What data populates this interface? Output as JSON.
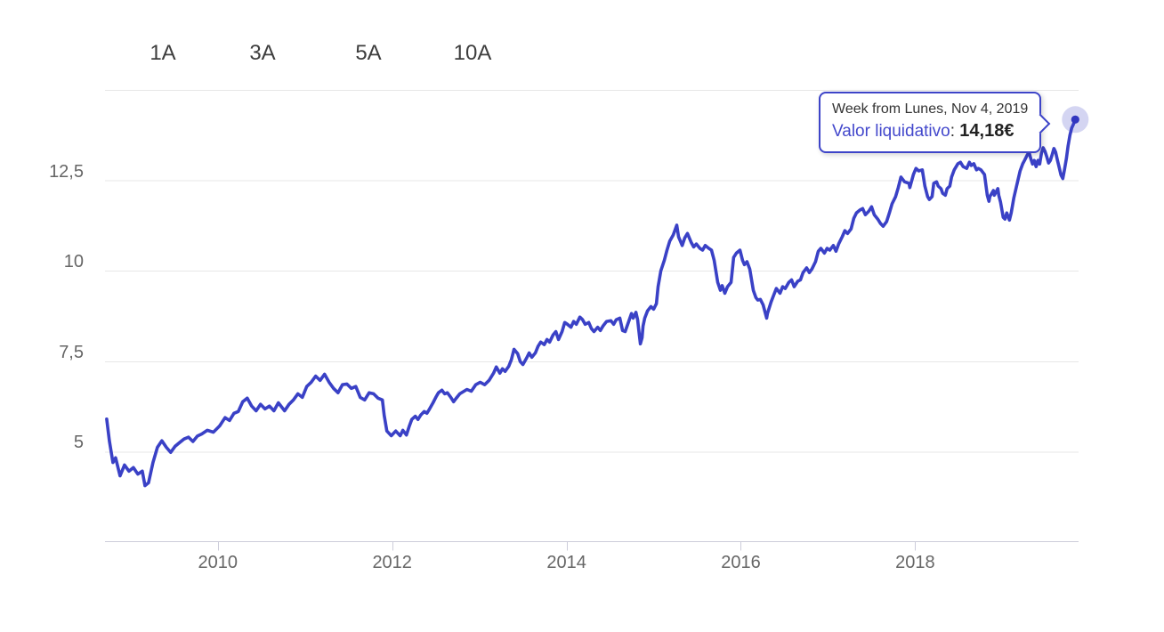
{
  "range_selector": {
    "buttons": [
      {
        "label": "1A"
      },
      {
        "label": "3A"
      },
      {
        "label": "5A"
      },
      {
        "label": "10A"
      }
    ]
  },
  "tooltip": {
    "header": "Week from Lunes, Nov 4, 2019",
    "series_label": "Valor liquidativo",
    "separator": ": ",
    "value": "14,18€"
  },
  "colors": {
    "line": "#3a41c6",
    "dot": "#3136bf",
    "halo": "rgba(58,65,198,0.22)",
    "grid": "#e7e7e7",
    "axis_line": "#ccccda",
    "tick": "#ccccda",
    "axis_label": "#666666",
    "button_text": "#3d3d3d",
    "tooltip_border": "#3d44c8",
    "tooltip_header": "#333333",
    "tooltip_label": "#4348cc",
    "tooltip_value": "#222222"
  },
  "chart_data": {
    "type": "line",
    "title": "",
    "xlabel": "",
    "ylabel": "",
    "series_name": "Valor liquidativo",
    "unit": "€",
    "grid": true,
    "x_axis": {
      "range": [
        2008.705,
        2019.875
      ],
      "ticks": [
        2010,
        2012,
        2014,
        2016,
        2018
      ],
      "tick_labels": [
        "2010",
        "2012",
        "2014",
        "2016",
        "2018"
      ]
    },
    "y_axis": {
      "range": [
        2.5,
        15
      ],
      "ticks": [
        5,
        7.5,
        10,
        12.5
      ],
      "tick_labels": [
        "5",
        "7,5",
        "10",
        "12,5"
      ],
      "gridlines": [
        5,
        7.5,
        10,
        12.5,
        15
      ]
    },
    "highlight_point": {
      "x": 2019.837,
      "y": 14.18,
      "date": "Nov 4, 2019",
      "value_label": "14,18€"
    },
    "points": [
      [
        2008.724,
        5.9
      ],
      [
        2008.755,
        5.3
      ],
      [
        2008.796,
        4.7
      ],
      [
        2008.827,
        4.83
      ],
      [
        2008.878,
        4.33
      ],
      [
        2008.929,
        4.63
      ],
      [
        2008.98,
        4.46
      ],
      [
        2009.031,
        4.56
      ],
      [
        2009.082,
        4.38
      ],
      [
        2009.133,
        4.46
      ],
      [
        2009.163,
        4.06
      ],
      [
        2009.204,
        4.14
      ],
      [
        2009.255,
        4.7
      ],
      [
        2009.306,
        5.12
      ],
      [
        2009.357,
        5.3
      ],
      [
        2009.408,
        5.12
      ],
      [
        2009.459,
        4.98
      ],
      [
        2009.51,
        5.15
      ],
      [
        2009.561,
        5.25
      ],
      [
        2009.612,
        5.35
      ],
      [
        2009.663,
        5.4
      ],
      [
        2009.714,
        5.28
      ],
      [
        2009.765,
        5.43
      ],
      [
        2009.816,
        5.49
      ],
      [
        2009.878,
        5.59
      ],
      [
        2009.949,
        5.54
      ],
      [
        2010.02,
        5.71
      ],
      [
        2010.082,
        5.94
      ],
      [
        2010.133,
        5.86
      ],
      [
        2010.184,
        6.06
      ],
      [
        2010.235,
        6.11
      ],
      [
        2010.286,
        6.38
      ],
      [
        2010.337,
        6.48
      ],
      [
        2010.388,
        6.26
      ],
      [
        2010.439,
        6.13
      ],
      [
        2010.49,
        6.31
      ],
      [
        2010.541,
        6.18
      ],
      [
        2010.592,
        6.26
      ],
      [
        2010.643,
        6.13
      ],
      [
        2010.694,
        6.35
      ],
      [
        2010.765,
        6.13
      ],
      [
        2010.816,
        6.31
      ],
      [
        2010.867,
        6.43
      ],
      [
        2010.918,
        6.6
      ],
      [
        2010.969,
        6.5
      ],
      [
        2011.02,
        6.8
      ],
      [
        2011.071,
        6.92
      ],
      [
        2011.122,
        7.09
      ],
      [
        2011.173,
        6.97
      ],
      [
        2011.224,
        7.14
      ],
      [
        2011.276,
        6.92
      ],
      [
        2011.327,
        6.75
      ],
      [
        2011.378,
        6.63
      ],
      [
        2011.429,
        6.85
      ],
      [
        2011.48,
        6.87
      ],
      [
        2011.531,
        6.75
      ],
      [
        2011.582,
        6.8
      ],
      [
        2011.633,
        6.5
      ],
      [
        2011.684,
        6.43
      ],
      [
        2011.735,
        6.63
      ],
      [
        2011.786,
        6.6
      ],
      [
        2011.837,
        6.48
      ],
      [
        2011.888,
        6.43
      ],
      [
        2011.908,
        6.01
      ],
      [
        2011.939,
        5.57
      ],
      [
        2011.99,
        5.44
      ],
      [
        2012.041,
        5.57
      ],
      [
        2012.092,
        5.44
      ],
      [
        2012.122,
        5.59
      ],
      [
        2012.163,
        5.46
      ],
      [
        2012.194,
        5.69
      ],
      [
        2012.224,
        5.89
      ],
      [
        2012.265,
        5.98
      ],
      [
        2012.296,
        5.89
      ],
      [
        2012.327,
        6.01
      ],
      [
        2012.367,
        6.11
      ],
      [
        2012.398,
        6.06
      ],
      [
        2012.429,
        6.18
      ],
      [
        2012.469,
        6.35
      ],
      [
        2012.5,
        6.5
      ],
      [
        2012.531,
        6.63
      ],
      [
        2012.571,
        6.7
      ],
      [
        2012.602,
        6.6
      ],
      [
        2012.633,
        6.63
      ],
      [
        2012.673,
        6.5
      ],
      [
        2012.704,
        6.38
      ],
      [
        2012.735,
        6.48
      ],
      [
        2012.776,
        6.6
      ],
      [
        2012.857,
        6.72
      ],
      [
        2012.908,
        6.67
      ],
      [
        2012.959,
        6.85
      ],
      [
        2013.01,
        6.92
      ],
      [
        2013.061,
        6.85
      ],
      [
        2013.112,
        6.97
      ],
      [
        2013.163,
        7.17
      ],
      [
        2013.194,
        7.34
      ],
      [
        2013.235,
        7.17
      ],
      [
        2013.265,
        7.29
      ],
      [
        2013.296,
        7.22
      ],
      [
        2013.337,
        7.36
      ],
      [
        2013.367,
        7.54
      ],
      [
        2013.398,
        7.83
      ],
      [
        2013.439,
        7.71
      ],
      [
        2013.469,
        7.49
      ],
      [
        2013.5,
        7.41
      ],
      [
        2013.541,
        7.58
      ],
      [
        2013.571,
        7.73
      ],
      [
        2013.602,
        7.61
      ],
      [
        2013.643,
        7.73
      ],
      [
        2013.673,
        7.91
      ],
      [
        2013.704,
        8.03
      ],
      [
        2013.745,
        7.96
      ],
      [
        2013.776,
        8.1
      ],
      [
        2013.806,
        8.03
      ],
      [
        2013.847,
        8.23
      ],
      [
        2013.878,
        8.32
      ],
      [
        2013.908,
        8.1
      ],
      [
        2013.949,
        8.32
      ],
      [
        2013.98,
        8.57
      ],
      [
        2014.01,
        8.52
      ],
      [
        2014.051,
        8.44
      ],
      [
        2014.082,
        8.6
      ],
      [
        2014.112,
        8.52
      ],
      [
        2014.153,
        8.72
      ],
      [
        2014.184,
        8.65
      ],
      [
        2014.214,
        8.52
      ],
      [
        2014.255,
        8.57
      ],
      [
        2014.286,
        8.4
      ],
      [
        2014.316,
        8.32
      ],
      [
        2014.357,
        8.44
      ],
      [
        2014.388,
        8.35
      ],
      [
        2014.418,
        8.47
      ],
      [
        2014.459,
        8.6
      ],
      [
        2014.51,
        8.62
      ],
      [
        2014.541,
        8.52
      ],
      [
        2014.571,
        8.65
      ],
      [
        2014.612,
        8.69
      ],
      [
        2014.643,
        8.35
      ],
      [
        2014.673,
        8.32
      ],
      [
        2014.714,
        8.6
      ],
      [
        2014.745,
        8.82
      ],
      [
        2014.765,
        8.69
      ],
      [
        2014.796,
        8.85
      ],
      [
        2014.816,
        8.65
      ],
      [
        2014.827,
        8.4
      ],
      [
        2014.847,
        7.98
      ],
      [
        2014.867,
        8.15
      ],
      [
        2014.878,
        8.47
      ],
      [
        2014.898,
        8.69
      ],
      [
        2014.929,
        8.89
      ],
      [
        2014.969,
        9.01
      ],
      [
        2015.0,
        8.94
      ],
      [
        2015.031,
        9.09
      ],
      [
        2015.051,
        9.56
      ],
      [
        2015.082,
        10.0
      ],
      [
        2015.122,
        10.29
      ],
      [
        2015.153,
        10.57
      ],
      [
        2015.184,
        10.82
      ],
      [
        2015.224,
        10.99
      ],
      [
        2015.265,
        11.26
      ],
      [
        2015.286,
        10.94
      ],
      [
        2015.327,
        10.7
      ],
      [
        2015.357,
        10.91
      ],
      [
        2015.388,
        11.03
      ],
      [
        2015.429,
        10.79
      ],
      [
        2015.459,
        10.66
      ],
      [
        2015.49,
        10.74
      ],
      [
        2015.531,
        10.62
      ],
      [
        2015.561,
        10.57
      ],
      [
        2015.592,
        10.7
      ],
      [
        2015.633,
        10.62
      ],
      [
        2015.663,
        10.57
      ],
      [
        2015.694,
        10.29
      ],
      [
        2015.735,
        9.68
      ],
      [
        2015.765,
        9.46
      ],
      [
        2015.786,
        9.59
      ],
      [
        2015.816,
        9.38
      ],
      [
        2015.847,
        9.56
      ],
      [
        2015.888,
        9.68
      ],
      [
        2015.918,
        10.37
      ],
      [
        2015.949,
        10.49
      ],
      [
        2015.99,
        10.57
      ],
      [
        2016.02,
        10.29
      ],
      [
        2016.041,
        10.17
      ],
      [
        2016.071,
        10.25
      ],
      [
        2016.102,
        10.05
      ],
      [
        2016.143,
        9.46
      ],
      [
        2016.173,
        9.26
      ],
      [
        2016.194,
        9.19
      ],
      [
        2016.224,
        9.21
      ],
      [
        2016.255,
        9.06
      ],
      [
        2016.296,
        8.69
      ],
      [
        2016.306,
        8.82
      ],
      [
        2016.347,
        9.14
      ],
      [
        2016.378,
        9.33
      ],
      [
        2016.408,
        9.51
      ],
      [
        2016.449,
        9.38
      ],
      [
        2016.48,
        9.56
      ],
      [
        2016.51,
        9.51
      ],
      [
        2016.551,
        9.68
      ],
      [
        2016.582,
        9.75
      ],
      [
        2016.612,
        9.56
      ],
      [
        2016.653,
        9.71
      ],
      [
        2016.684,
        9.75
      ],
      [
        2016.714,
        9.95
      ],
      [
        2016.755,
        10.08
      ],
      [
        2016.786,
        9.95
      ],
      [
        2016.816,
        10.05
      ],
      [
        2016.857,
        10.25
      ],
      [
        2016.888,
        10.54
      ],
      [
        2016.918,
        10.62
      ],
      [
        2016.959,
        10.49
      ],
      [
        2016.99,
        10.62
      ],
      [
        2017.02,
        10.57
      ],
      [
        2017.061,
        10.7
      ],
      [
        2017.092,
        10.54
      ],
      [
        2017.122,
        10.74
      ],
      [
        2017.163,
        10.94
      ],
      [
        2017.194,
        11.11
      ],
      [
        2017.224,
        11.03
      ],
      [
        2017.265,
        11.16
      ],
      [
        2017.296,
        11.45
      ],
      [
        2017.327,
        11.6
      ],
      [
        2017.367,
        11.68
      ],
      [
        2017.398,
        11.72
      ],
      [
        2017.429,
        11.55
      ],
      [
        2017.469,
        11.65
      ],
      [
        2017.5,
        11.77
      ],
      [
        2017.531,
        11.55
      ],
      [
        2017.571,
        11.43
      ],
      [
        2017.602,
        11.31
      ],
      [
        2017.633,
        11.23
      ],
      [
        2017.673,
        11.36
      ],
      [
        2017.704,
        11.6
      ],
      [
        2017.735,
        11.85
      ],
      [
        2017.776,
        12.05
      ],
      [
        2017.806,
        12.3
      ],
      [
        2017.837,
        12.59
      ],
      [
        2017.878,
        12.46
      ],
      [
        2017.929,
        12.42
      ],
      [
        2017.939,
        12.3
      ],
      [
        2017.98,
        12.66
      ],
      [
        2018.01,
        12.83
      ],
      [
        2018.041,
        12.76
      ],
      [
        2018.082,
        12.79
      ],
      [
        2018.112,
        12.34
      ],
      [
        2018.143,
        12.05
      ],
      [
        2018.163,
        11.97
      ],
      [
        2018.194,
        12.05
      ],
      [
        2018.214,
        12.42
      ],
      [
        2018.245,
        12.46
      ],
      [
        2018.265,
        12.34
      ],
      [
        2018.296,
        12.27
      ],
      [
        2018.316,
        12.14
      ],
      [
        2018.347,
        12.09
      ],
      [
        2018.367,
        12.27
      ],
      [
        2018.398,
        12.34
      ],
      [
        2018.418,
        12.59
      ],
      [
        2018.449,
        12.79
      ],
      [
        2018.49,
        12.96
      ],
      [
        2018.52,
        13.0
      ],
      [
        2018.551,
        12.88
      ],
      [
        2018.592,
        12.83
      ],
      [
        2018.622,
        13.0
      ],
      [
        2018.643,
        12.91
      ],
      [
        2018.673,
        12.96
      ],
      [
        2018.704,
        12.79
      ],
      [
        2018.724,
        12.83
      ],
      [
        2018.755,
        12.79
      ],
      [
        2018.796,
        12.66
      ],
      [
        2018.827,
        12.09
      ],
      [
        2018.847,
        11.92
      ],
      [
        2018.857,
        12.05
      ],
      [
        2018.898,
        12.22
      ],
      [
        2018.908,
        12.09
      ],
      [
        2018.949,
        12.27
      ],
      [
        2018.959,
        12.09
      ],
      [
        2018.98,
        11.9
      ],
      [
        2019.01,
        11.48
      ],
      [
        2019.031,
        11.43
      ],
      [
        2019.051,
        11.6
      ],
      [
        2019.082,
        11.4
      ],
      [
        2019.102,
        11.6
      ],
      [
        2019.133,
        12.02
      ],
      [
        2019.163,
        12.34
      ],
      [
        2019.204,
        12.76
      ],
      [
        2019.235,
        12.96
      ],
      [
        2019.255,
        13.05
      ],
      [
        2019.286,
        13.2
      ],
      [
        2019.306,
        13.28
      ],
      [
        2019.327,
        13.1
      ],
      [
        2019.347,
        12.95
      ],
      [
        2019.367,
        13.05
      ],
      [
        2019.388,
        12.88
      ],
      [
        2019.408,
        13.05
      ],
      [
        2019.429,
        12.95
      ],
      [
        2019.449,
        13.25
      ],
      [
        2019.469,
        13.4
      ],
      [
        2019.49,
        13.3
      ],
      [
        2019.51,
        13.15
      ],
      [
        2019.531,
        12.98
      ],
      [
        2019.551,
        13.05
      ],
      [
        2019.571,
        13.2
      ],
      [
        2019.592,
        13.38
      ],
      [
        2019.612,
        13.28
      ],
      [
        2019.633,
        13.05
      ],
      [
        2019.653,
        12.85
      ],
      [
        2019.673,
        12.65
      ],
      [
        2019.694,
        12.55
      ],
      [
        2019.714,
        12.8
      ],
      [
        2019.735,
        13.1
      ],
      [
        2019.755,
        13.45
      ],
      [
        2019.776,
        13.75
      ],
      [
        2019.796,
        13.95
      ],
      [
        2019.816,
        14.05
      ],
      [
        2019.837,
        14.18
      ]
    ]
  }
}
